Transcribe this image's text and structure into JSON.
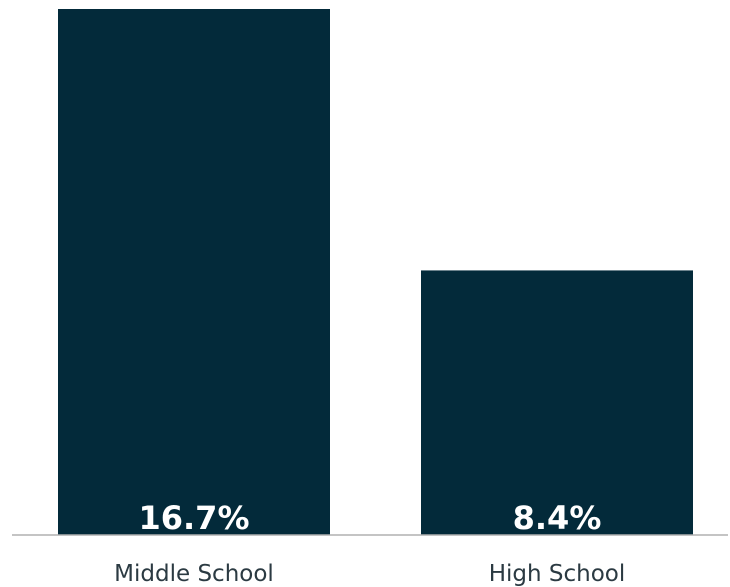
{
  "chart_data": {
    "type": "bar",
    "categories": [
      "Middle School",
      "High School"
    ],
    "values": [
      16.7,
      8.4
    ],
    "value_labels": [
      "16.7%",
      "8.4%"
    ],
    "unit": "%",
    "ylim": [
      0,
      16.7
    ],
    "grid": false,
    "bar_color": "#032a3a",
    "axis_color": "#b0b0b0",
    "title": "",
    "xlabel": "",
    "ylabel": ""
  }
}
